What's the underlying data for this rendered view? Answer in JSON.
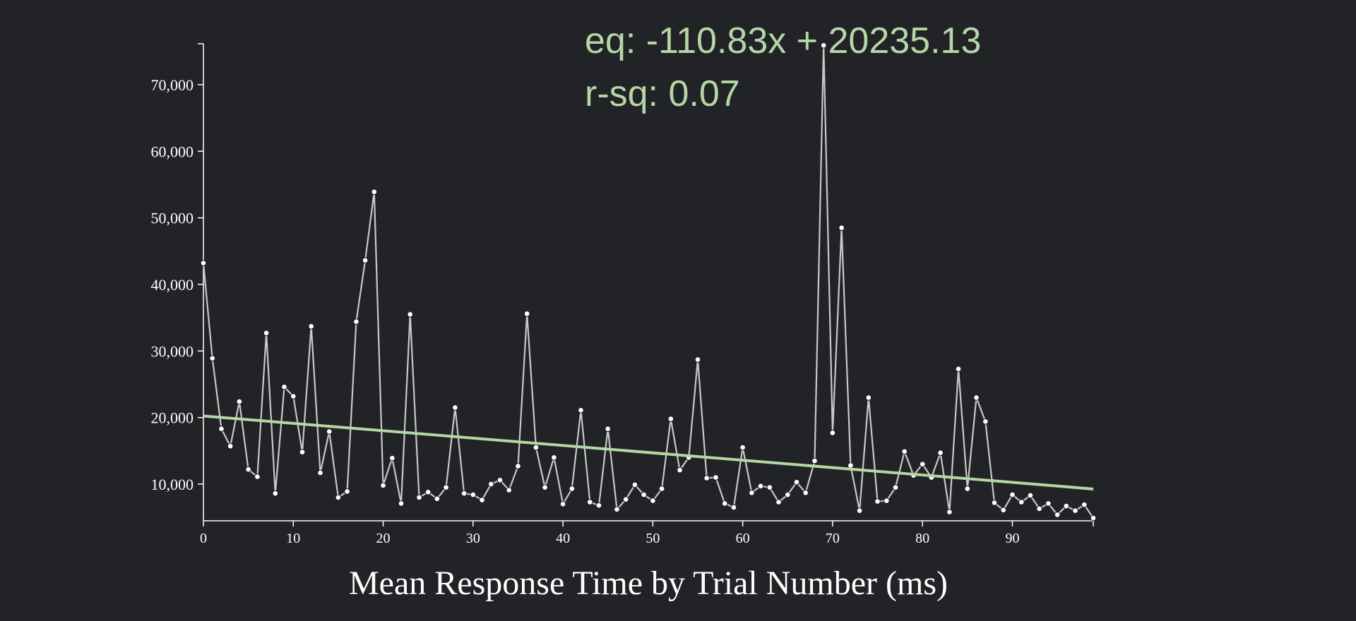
{
  "chart_data": {
    "type": "line",
    "title": "Mean Response Time by Trial Number (ms)",
    "xlabel": "",
    "ylabel": "",
    "xlim": [
      0,
      99
    ],
    "ylim": [
      5000,
      76000
    ],
    "x_ticks": [
      0,
      10,
      20,
      30,
      40,
      50,
      60,
      70,
      80,
      90
    ],
    "x_tick_labels": [
      "0",
      "10",
      "20",
      "30",
      "40",
      "50",
      "60",
      "70",
      "80",
      "90"
    ],
    "y_ticks": [
      10000,
      20000,
      30000,
      40000,
      50000,
      60000,
      70000
    ],
    "y_tick_labels": [
      "10,000",
      "20,000",
      "30,000",
      "40,000",
      "50,000",
      "60,000",
      "70,000"
    ],
    "series": [
      {
        "values": [
          43200,
          28900,
          18300,
          15700,
          22400,
          12200,
          11100,
          32700,
          8600,
          24600,
          23200,
          14800,
          33700,
          11700,
          17900,
          8000,
          8900,
          34400,
          43600,
          53900,
          9800,
          13900,
          7100,
          35500,
          8000,
          8800,
          7800,
          9500,
          21500,
          8600,
          8400,
          7600,
          10000,
          10600,
          9100,
          12700,
          35600,
          15500,
          9500,
          14000,
          7000,
          9300,
          21100,
          7300,
          6800,
          18300,
          6200,
          7700,
          9900,
          8400,
          7500,
          9300,
          19800,
          12100,
          14000,
          28700,
          10900,
          11000,
          7100,
          6500,
          15500,
          8700,
          9700,
          9500,
          7300,
          8400,
          10300,
          8700,
          13500,
          75900,
          17700,
          48500,
          12800,
          6000,
          23000,
          7400,
          7500,
          9500,
          14900,
          11300,
          13000,
          11000,
          14700,
          5800,
          27300,
          9300,
          23000,
          19400,
          7200,
          6100,
          8400,
          7300,
          8300,
          6300,
          7100,
          5400,
          6700,
          6000,
          6900,
          4900
        ]
      }
    ],
    "regression": {
      "slope": -110.83,
      "intercept": 20235.13,
      "equation_text": "eq: -110.83x + 20235.13",
      "rsq_text": "r-sq: 0.07",
      "color": "#b5d6a7"
    },
    "colors": {
      "background": "#222326",
      "line": "#c8c8c8",
      "point_fill": "#ffffff",
      "axis": "#ffffff",
      "text": "#ffffff"
    },
    "grid": false,
    "legend": "none"
  }
}
